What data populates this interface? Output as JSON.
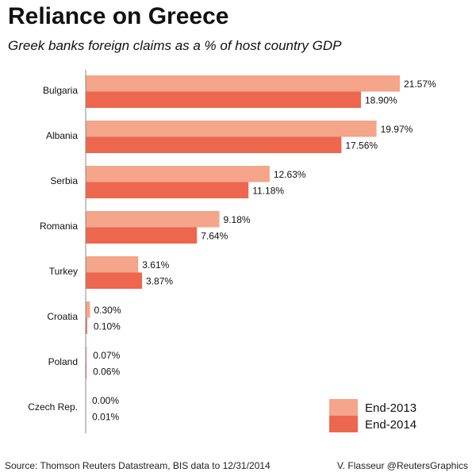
{
  "chart_data": {
    "type": "bar",
    "orientation": "horizontal",
    "title": "Reliance on Greece",
    "subtitle": "Greek banks foreign claims as a % of host country GDP",
    "categories": [
      "Bulgaria",
      "Albania",
      "Serbia",
      "Romania",
      "Turkey",
      "Croatia",
      "Poland",
      "Czech Rep."
    ],
    "series": [
      {
        "name": "End-2013",
        "color": "#F4A58A",
        "values": [
          21.57,
          19.97,
          12.63,
          9.18,
          3.61,
          0.3,
          0.07,
          0.0
        ],
        "labels": [
          "21.57%",
          "19.97%",
          "12.63%",
          "9.18%",
          "3.61%",
          "0.30%",
          "0.07%",
          "0.00%"
        ]
      },
      {
        "name": "End-2014",
        "color": "#EC674E",
        "values": [
          18.9,
          17.56,
          11.18,
          7.64,
          3.87,
          0.1,
          0.06,
          0.01
        ],
        "labels": [
          "18.90%",
          "17.56%",
          "11.18%",
          "7.64%",
          "3.87%",
          "0.10%",
          "0.06%",
          "0.01%"
        ]
      }
    ],
    "xlim": [
      0,
      21.57
    ],
    "grid": false,
    "legend_position": "bottom-right"
  },
  "footer": {
    "source": "Source: Thomson Reuters Datastream, BIS data to 12/31/2014",
    "credit": "V. Flasseur @ReutersGraphics"
  }
}
